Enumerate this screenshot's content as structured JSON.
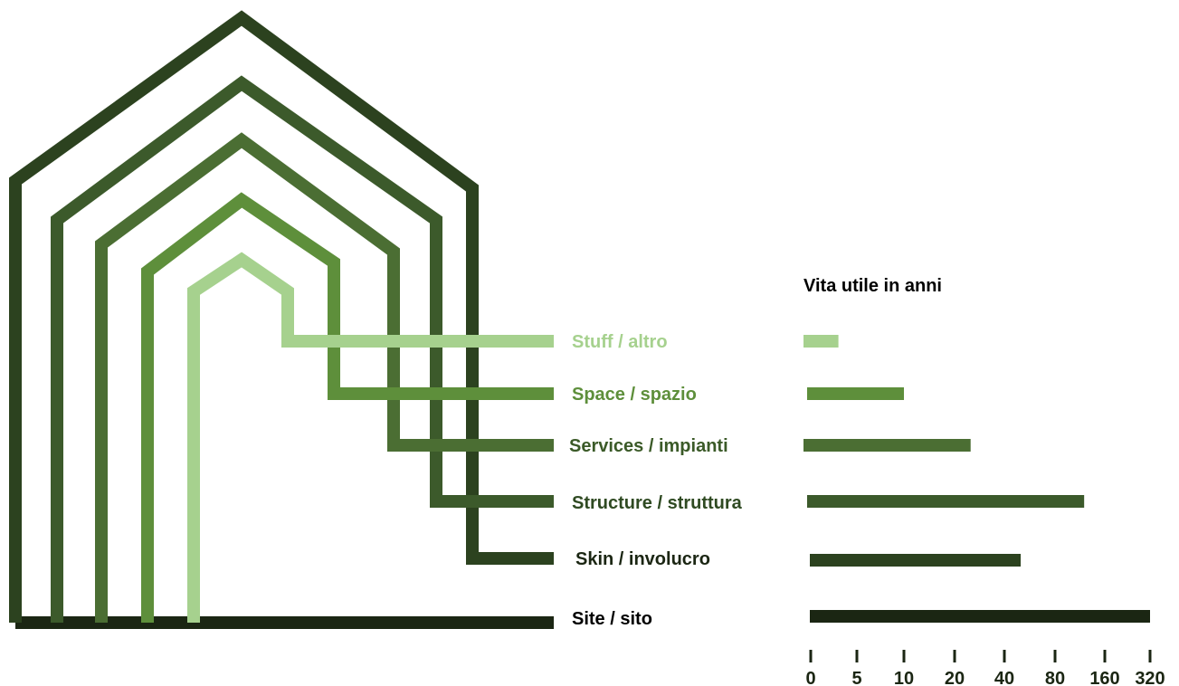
{
  "legend_title": "Vita utile in anni",
  "layers": [
    {
      "label": "Stuff / altro",
      "color": "#a6d18e",
      "years": 3
    },
    {
      "label": "Space / spazio",
      "color": "#5e8f3b",
      "years": 10
    },
    {
      "label": "Services / impianti",
      "color": "#4b6e33",
      "years": 25
    },
    {
      "label": "Structure / struttura",
      "color": "#3c5a2b",
      "years": 120
    },
    {
      "label": "Skin / involucro",
      "color": "#2c421f",
      "years": 50
    },
    {
      "label": "Site / sito",
      "color": "#1b2613",
      "years": 320
    }
  ],
  "axis_ticks": [
    "0",
    "5",
    "10",
    "20",
    "40",
    "80",
    "160",
    "320"
  ],
  "chart_data": {
    "type": "bar",
    "title": "Vita utile in anni",
    "categories": [
      "Stuff / altro",
      "Space / spazio",
      "Services / impianti",
      "Structure / struttura",
      "Skin / involucro",
      "Site / sito"
    ],
    "values": [
      3,
      10,
      25,
      120,
      50,
      320
    ],
    "xticks": [
      0,
      5,
      10,
      20,
      40,
      80,
      160,
      320
    ],
    "xscale": "log2-style (doubling intervals)"
  }
}
